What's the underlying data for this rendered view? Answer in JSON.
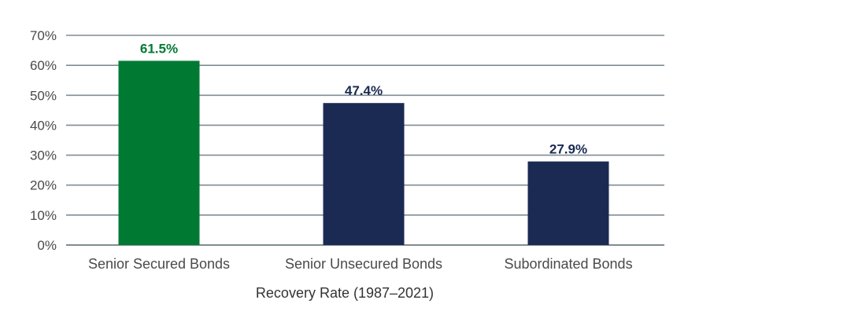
{
  "chart_data": {
    "type": "bar",
    "categories": [
      "Senior Secured Bonds",
      "Senior Unsecured Bonds",
      "Subordinated Bonds"
    ],
    "values": [
      61.5,
      47.4,
      27.9
    ],
    "data_labels": [
      "61.5%",
      "47.4%",
      "27.9%"
    ],
    "bar_colors": [
      "#007a33",
      "#1b2a52",
      "#1b2a52"
    ],
    "label_colors": [
      "#007a33",
      "#1b2a52",
      "#1b2a52"
    ],
    "title": "",
    "xlabel": "Recovery Rate (1987–2021)",
    "ylabel": "",
    "ylim": [
      0,
      70
    ],
    "yticks": [
      0,
      10,
      20,
      30,
      40,
      50,
      60,
      70
    ],
    "ytick_labels": [
      "0%",
      "10%",
      "20%",
      "30%",
      "40%",
      "50%",
      "60%",
      "70%"
    ],
    "grid": true,
    "grid_color": "#7f8c94",
    "legend": "none"
  }
}
